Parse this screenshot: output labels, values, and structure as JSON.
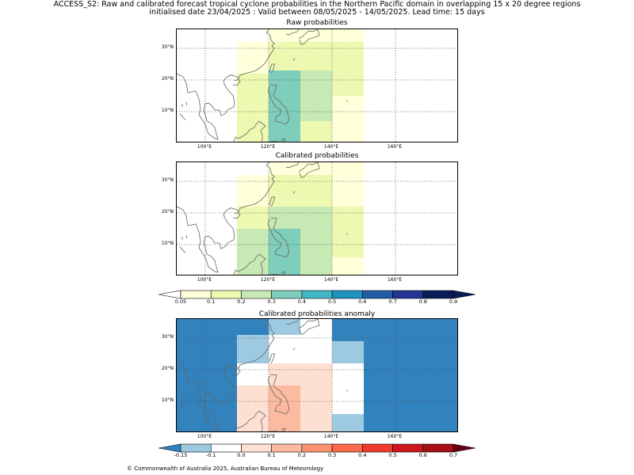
{
  "header": {
    "line1": "ACCESS_S2: Raw and calibrated forecast tropical cyclone probabilities in the Northern Pacific domain in overlapping 15 x 20 degree regions",
    "line2": "initialised date 23/04/2025 :  Valid between 08/05/2025 - 14/05/2025. Lead time: 15 days"
  },
  "footer": "© Commonwealth of Australia 2025, Australian Bureau of Meteorology",
  "map_extent": {
    "lon": [
      91,
      180
    ],
    "lat": [
      0,
      36
    ]
  },
  "lon_ticks": [
    "100°E",
    "120°E",
    "140°E",
    "160°E"
  ],
  "lon_tick_values": [
    100,
    120,
    140,
    160
  ],
  "lat_ticks": [
    "30°N",
    "20°N",
    "10°N"
  ],
  "lat_tick_values": [
    30,
    20,
    10
  ],
  "prob_colorbar": {
    "ticks": [
      "0.05",
      "0.1",
      "0.2",
      "0.3",
      "0.4",
      "0.5",
      "0.6",
      "0.7",
      "0.8",
      "0.9"
    ],
    "colors": [
      "#ffffd9",
      "#edf8b1",
      "#c7e9b4",
      "#7fcdbb",
      "#41b6c4",
      "#1d91c0",
      "#225ea8",
      "#253494",
      "#081d58"
    ],
    "under": "#ffffff",
    "over": "#081d58"
  },
  "anom_colorbar": {
    "ticks": [
      "-0.15",
      "-0.1",
      "0.0",
      "0.1",
      "0.2",
      "0.3",
      "0.4",
      "0.5",
      "0.6",
      "0.7"
    ],
    "colors": [
      "#9ecae1",
      "#ffffff",
      "#fee0d2",
      "#fcbba1",
      "#fc9272",
      "#fb6a4a",
      "#ef3b2c",
      "#cb181d",
      "#a50f15"
    ],
    "under": "#3182bd",
    "over": "#67000d"
  },
  "chart_data": [
    {
      "type": "heatmap",
      "title": "Raw probabilities",
      "cells": [
        {
          "lon": [
            110,
            120
          ],
          "lat": [
            32,
            36
          ],
          "fill": "#ffffff"
        },
        {
          "lon": [
            120,
            140
          ],
          "lat": [
            32,
            36
          ],
          "fill": "#ffffd9"
        },
        {
          "lon": [
            140,
            150
          ],
          "lat": [
            32,
            36
          ],
          "fill": "#ffffd9"
        },
        {
          "lon": [
            110,
            120
          ],
          "lat": [
            22,
            32
          ],
          "fill": "#ffffd9"
        },
        {
          "lon": [
            120,
            140
          ],
          "lat": [
            22,
            32
          ],
          "fill": "#edf8b1"
        },
        {
          "lon": [
            140,
            150
          ],
          "lat": [
            15,
            32
          ],
          "fill": "#edf8b1"
        },
        {
          "lon": [
            110,
            120
          ],
          "lat": [
            0,
            22
          ],
          "fill": "#edf8b1"
        },
        {
          "lon": [
            120,
            140
          ],
          "lat": [
            7,
            23
          ],
          "fill": "#c7e9b4"
        },
        {
          "lon": [
            130,
            140
          ],
          "lat": [
            0,
            7
          ],
          "fill": "#edf8b1"
        },
        {
          "lon": [
            120,
            130
          ],
          "lat": [
            0,
            15
          ],
          "fill": "#c7e9b4"
        },
        {
          "lon": [
            120,
            130
          ],
          "lat": [
            0,
            23
          ],
          "fill": "#7fcdbb"
        },
        {
          "lon": [
            140,
            150
          ],
          "lat": [
            0,
            15
          ],
          "fill": "#ffffd9"
        }
      ]
    },
    {
      "type": "heatmap",
      "title": "Calibrated probabilities",
      "cells": [
        {
          "lon": [
            110,
            120
          ],
          "lat": [
            32,
            36
          ],
          "fill": "#ffffff"
        },
        {
          "lon": [
            120,
            150
          ],
          "lat": [
            32,
            36
          ],
          "fill": "#ffffd9"
        },
        {
          "lon": [
            110,
            120
          ],
          "lat": [
            22,
            32
          ],
          "fill": "#ffffd9"
        },
        {
          "lon": [
            120,
            140
          ],
          "lat": [
            22,
            32
          ],
          "fill": "#edf8b1"
        },
        {
          "lon": [
            140,
            150
          ],
          "lat": [
            22,
            32
          ],
          "fill": "#ffffd9"
        },
        {
          "lon": [
            110,
            120
          ],
          "lat": [
            15,
            22
          ],
          "fill": "#edf8b1"
        },
        {
          "lon": [
            120,
            140
          ],
          "lat": [
            15,
            22
          ],
          "fill": "#c7e9b4"
        },
        {
          "lon": [
            140,
            150
          ],
          "lat": [
            6,
            22
          ],
          "fill": "#edf8b1"
        },
        {
          "lon": [
            110,
            120
          ],
          "lat": [
            0,
            15
          ],
          "fill": "#c7e9b4"
        },
        {
          "lon": [
            120,
            130
          ],
          "lat": [
            0,
            15
          ],
          "fill": "#7fcdbb"
        },
        {
          "lon": [
            130,
            140
          ],
          "lat": [
            0,
            15
          ],
          "fill": "#c7e9b4"
        },
        {
          "lon": [
            140,
            150
          ],
          "lat": [
            0,
            6
          ],
          "fill": "#ffffd9"
        }
      ]
    },
    {
      "type": "heatmap",
      "title": "Calibrated probabilities anomaly",
      "background": "#3182bd",
      "cells": [
        {
          "lon": [
            120,
            130
          ],
          "lat": [
            31,
            36
          ],
          "fill": "#9ecae1"
        },
        {
          "lon": [
            130,
            140
          ],
          "lat": [
            29,
            36
          ],
          "fill": "#ffffff"
        },
        {
          "lon": [
            110,
            120
          ],
          "lat": [
            22,
            31
          ],
          "fill": "#9ecae1"
        },
        {
          "lon": [
            120,
            130
          ],
          "lat": [
            29,
            31
          ],
          "fill": "#ffffff"
        },
        {
          "lon": [
            120,
            140
          ],
          "lat": [
            22,
            29
          ],
          "fill": "#ffffff"
        },
        {
          "lon": [
            140,
            150
          ],
          "lat": [
            22,
            29
          ],
          "fill": "#9ecae1"
        },
        {
          "lon": [
            110,
            120
          ],
          "lat": [
            15,
            22
          ],
          "fill": "#ffffff"
        },
        {
          "lon": [
            120,
            140
          ],
          "lat": [
            15,
            22
          ],
          "fill": "#fee0d2"
        },
        {
          "lon": [
            140,
            150
          ],
          "lat": [
            6,
            22
          ],
          "fill": "#ffffff"
        },
        {
          "lon": [
            110,
            120
          ],
          "lat": [
            0,
            15
          ],
          "fill": "#fee0d2"
        },
        {
          "lon": [
            120,
            130
          ],
          "lat": [
            0,
            15
          ],
          "fill": "#fcbba1"
        },
        {
          "lon": [
            130,
            140
          ],
          "lat": [
            0,
            15
          ],
          "fill": "#fee0d2"
        },
        {
          "lon": [
            140,
            150
          ],
          "lat": [
            0,
            6
          ],
          "fill": "#9ecae1"
        }
      ]
    }
  ]
}
